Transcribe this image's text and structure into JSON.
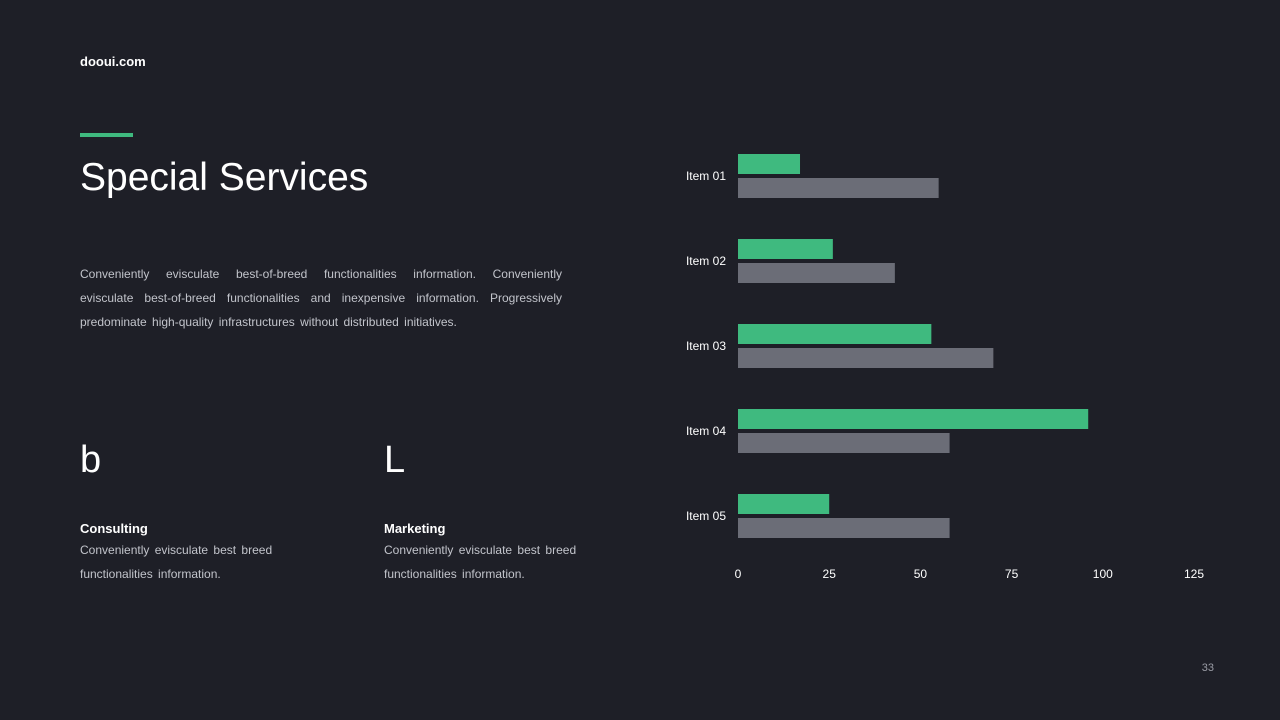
{
  "brand": "dooui.com",
  "title": "Special Services",
  "description": "Conveniently evisculate best-of-breed functionalities information. Conveniently evisculate best-of-breed functionalities and inexpensive information. Progressively predominate high-quality infrastructures without distributed initiatives.",
  "features": [
    {
      "glyph": "b",
      "title": "Consulting",
      "text": "Conveniently evisculate best breed functionalities information."
    },
    {
      "glyph": "L",
      "title": "Marketing",
      "text": "Conveniently evisculate best breed functionalities information."
    }
  ],
  "page_number": "33",
  "colors": {
    "accent": "#3fba7f",
    "secondary": "#6b6d77",
    "background": "#1e1f27"
  },
  "chart_data": {
    "type": "bar",
    "orientation": "horizontal",
    "categories": [
      "Item 01",
      "Item 02",
      "Item 03",
      "Item 04",
      "Item 05"
    ],
    "series": [
      {
        "values": [
          17,
          26,
          53,
          96,
          25
        ],
        "color": "#3fba7f"
      },
      {
        "values": [
          55,
          43,
          70,
          58,
          58
        ],
        "color": "#6b6d77"
      }
    ],
    "xlim": [
      0,
      125
    ],
    "xticks": [
      0,
      25,
      50,
      75,
      100,
      125
    ],
    "grid": false,
    "legend": "none"
  }
}
